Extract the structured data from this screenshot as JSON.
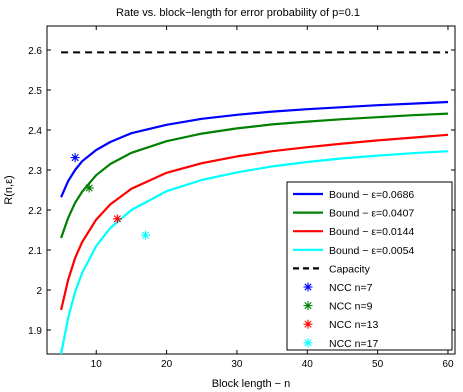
{
  "chart_data": {
    "type": "line",
    "title": "Rate vs. block−length for error probability of p=0.1",
    "xlabel": "Block length − n",
    "ylabel": "R(n,ε)",
    "xlim": [
      3,
      61
    ],
    "ylim": [
      1.84,
      2.66
    ],
    "x_ticks": [
      {
        "value": 10,
        "label": "10"
      },
      {
        "value": 20,
        "label": "20"
      },
      {
        "value": 30,
        "label": "30"
      },
      {
        "value": 40,
        "label": "40"
      },
      {
        "value": 50,
        "label": "50"
      },
      {
        "value": 60,
        "label": "60"
      }
    ],
    "y_ticks": [
      {
        "value": 1.9,
        "label": "1.9"
      },
      {
        "value": 2.0,
        "label": "2"
      },
      {
        "value": 2.1,
        "label": "2.1"
      },
      {
        "value": 2.2,
        "label": "2.2"
      },
      {
        "value": 2.3,
        "label": "2.3"
      },
      {
        "value": 2.4,
        "label": "2.4"
      },
      {
        "value": 2.5,
        "label": "2.5"
      },
      {
        "value": 2.6,
        "label": "2.6"
      }
    ],
    "grid": false,
    "legend_position": "lower-right",
    "series": [
      {
        "name": "Bound − ε=0.0686",
        "style": "line",
        "color": "#0000ff",
        "x": [
          5,
          6,
          7,
          8,
          10,
          12,
          15,
          20,
          25,
          30,
          35,
          40,
          45,
          50,
          55,
          60
        ],
        "y": [
          2.232,
          2.272,
          2.3,
          2.322,
          2.35,
          2.37,
          2.392,
          2.413,
          2.428,
          2.438,
          2.446,
          2.452,
          2.457,
          2.462,
          2.466,
          2.47
        ]
      },
      {
        "name": "Bound − ε=0.0407",
        "style": "line",
        "color": "#008000",
        "x": [
          5,
          6,
          7,
          8,
          10,
          12,
          15,
          20,
          25,
          30,
          35,
          40,
          45,
          50,
          55,
          60
        ],
        "y": [
          2.13,
          2.18,
          2.218,
          2.246,
          2.287,
          2.315,
          2.343,
          2.372,
          2.391,
          2.404,
          2.414,
          2.421,
          2.427,
          2.432,
          2.437,
          2.441
        ]
      },
      {
        "name": "Bound − ε=0.0144",
        "style": "line",
        "color": "#ff0000",
        "x": [
          5,
          6,
          7,
          8,
          10,
          12,
          15,
          20,
          25,
          30,
          35,
          40,
          45,
          50,
          55,
          60
        ],
        "y": [
          1.95,
          2.025,
          2.08,
          2.12,
          2.176,
          2.214,
          2.253,
          2.293,
          2.317,
          2.334,
          2.347,
          2.357,
          2.366,
          2.374,
          2.381,
          2.388
        ]
      },
      {
        "name": "Bound − ε=0.0054",
        "style": "line",
        "color": "#00ffff",
        "x": [
          5,
          6,
          7,
          8,
          10,
          12,
          15,
          20,
          25,
          30,
          35,
          40,
          45,
          50,
          55,
          60
        ],
        "y": [
          1.84,
          1.93,
          1.995,
          2.043,
          2.11,
          2.155,
          2.2,
          2.247,
          2.275,
          2.294,
          2.309,
          2.32,
          2.329,
          2.336,
          2.342,
          2.347
        ]
      },
      {
        "name": "Capacity",
        "style": "dashed",
        "color": "#000000",
        "x": [
          5,
          60
        ],
        "y": [
          2.594,
          2.594
        ]
      },
      {
        "name": "NCC n=7",
        "style": "marker",
        "color": "#0000ff",
        "x": [
          7
        ],
        "y": [
          2.331
        ]
      },
      {
        "name": "NCC n=9",
        "style": "marker",
        "color": "#008000",
        "x": [
          9
        ],
        "y": [
          2.255
        ]
      },
      {
        "name": "NCC n=13",
        "style": "marker",
        "color": "#ff0000",
        "x": [
          13
        ],
        "y": [
          2.178
        ]
      },
      {
        "name": "NCC n=17",
        "style": "marker",
        "color": "#00ffff",
        "x": [
          17
        ],
        "y": [
          2.137
        ]
      }
    ]
  }
}
